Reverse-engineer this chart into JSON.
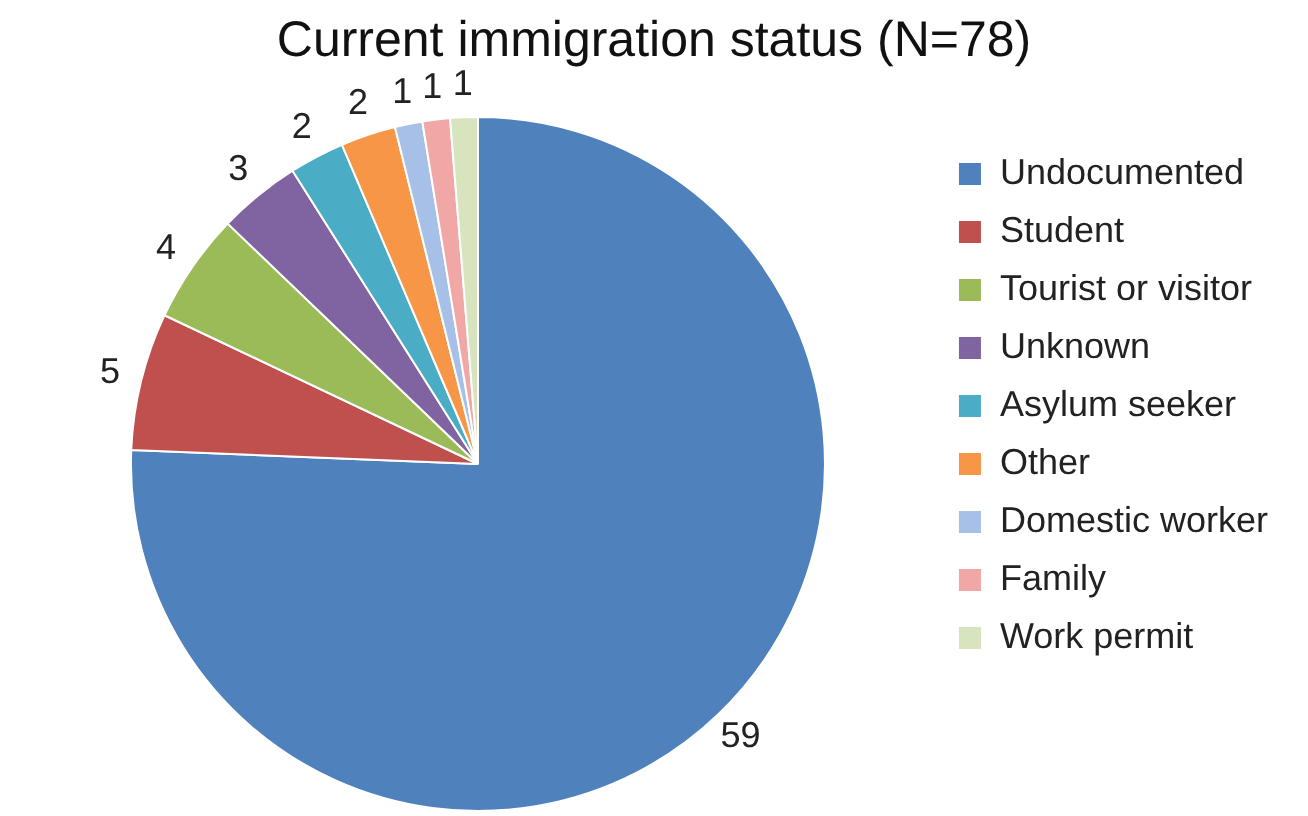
{
  "chart_data": {
    "type": "pie",
    "title": "Current immigration status (N=78)",
    "categories": [
      "Undocumented",
      "Student",
      "Tourist or visitor",
      "Unknown",
      "Asylum seeker",
      "Other",
      "Domestic worker",
      "Family",
      "Work permit"
    ],
    "values": [
      59,
      5,
      4,
      3,
      2,
      2,
      1,
      1,
      1
    ],
    "colors": [
      "#4f81bd",
      "#c0504d",
      "#9bbb59",
      "#8064a2",
      "#4bacc6",
      "#f79646",
      "#a7c0e8",
      "#f2a7a7",
      "#d7e4bd"
    ],
    "data_labels": true,
    "legend": "right"
  }
}
